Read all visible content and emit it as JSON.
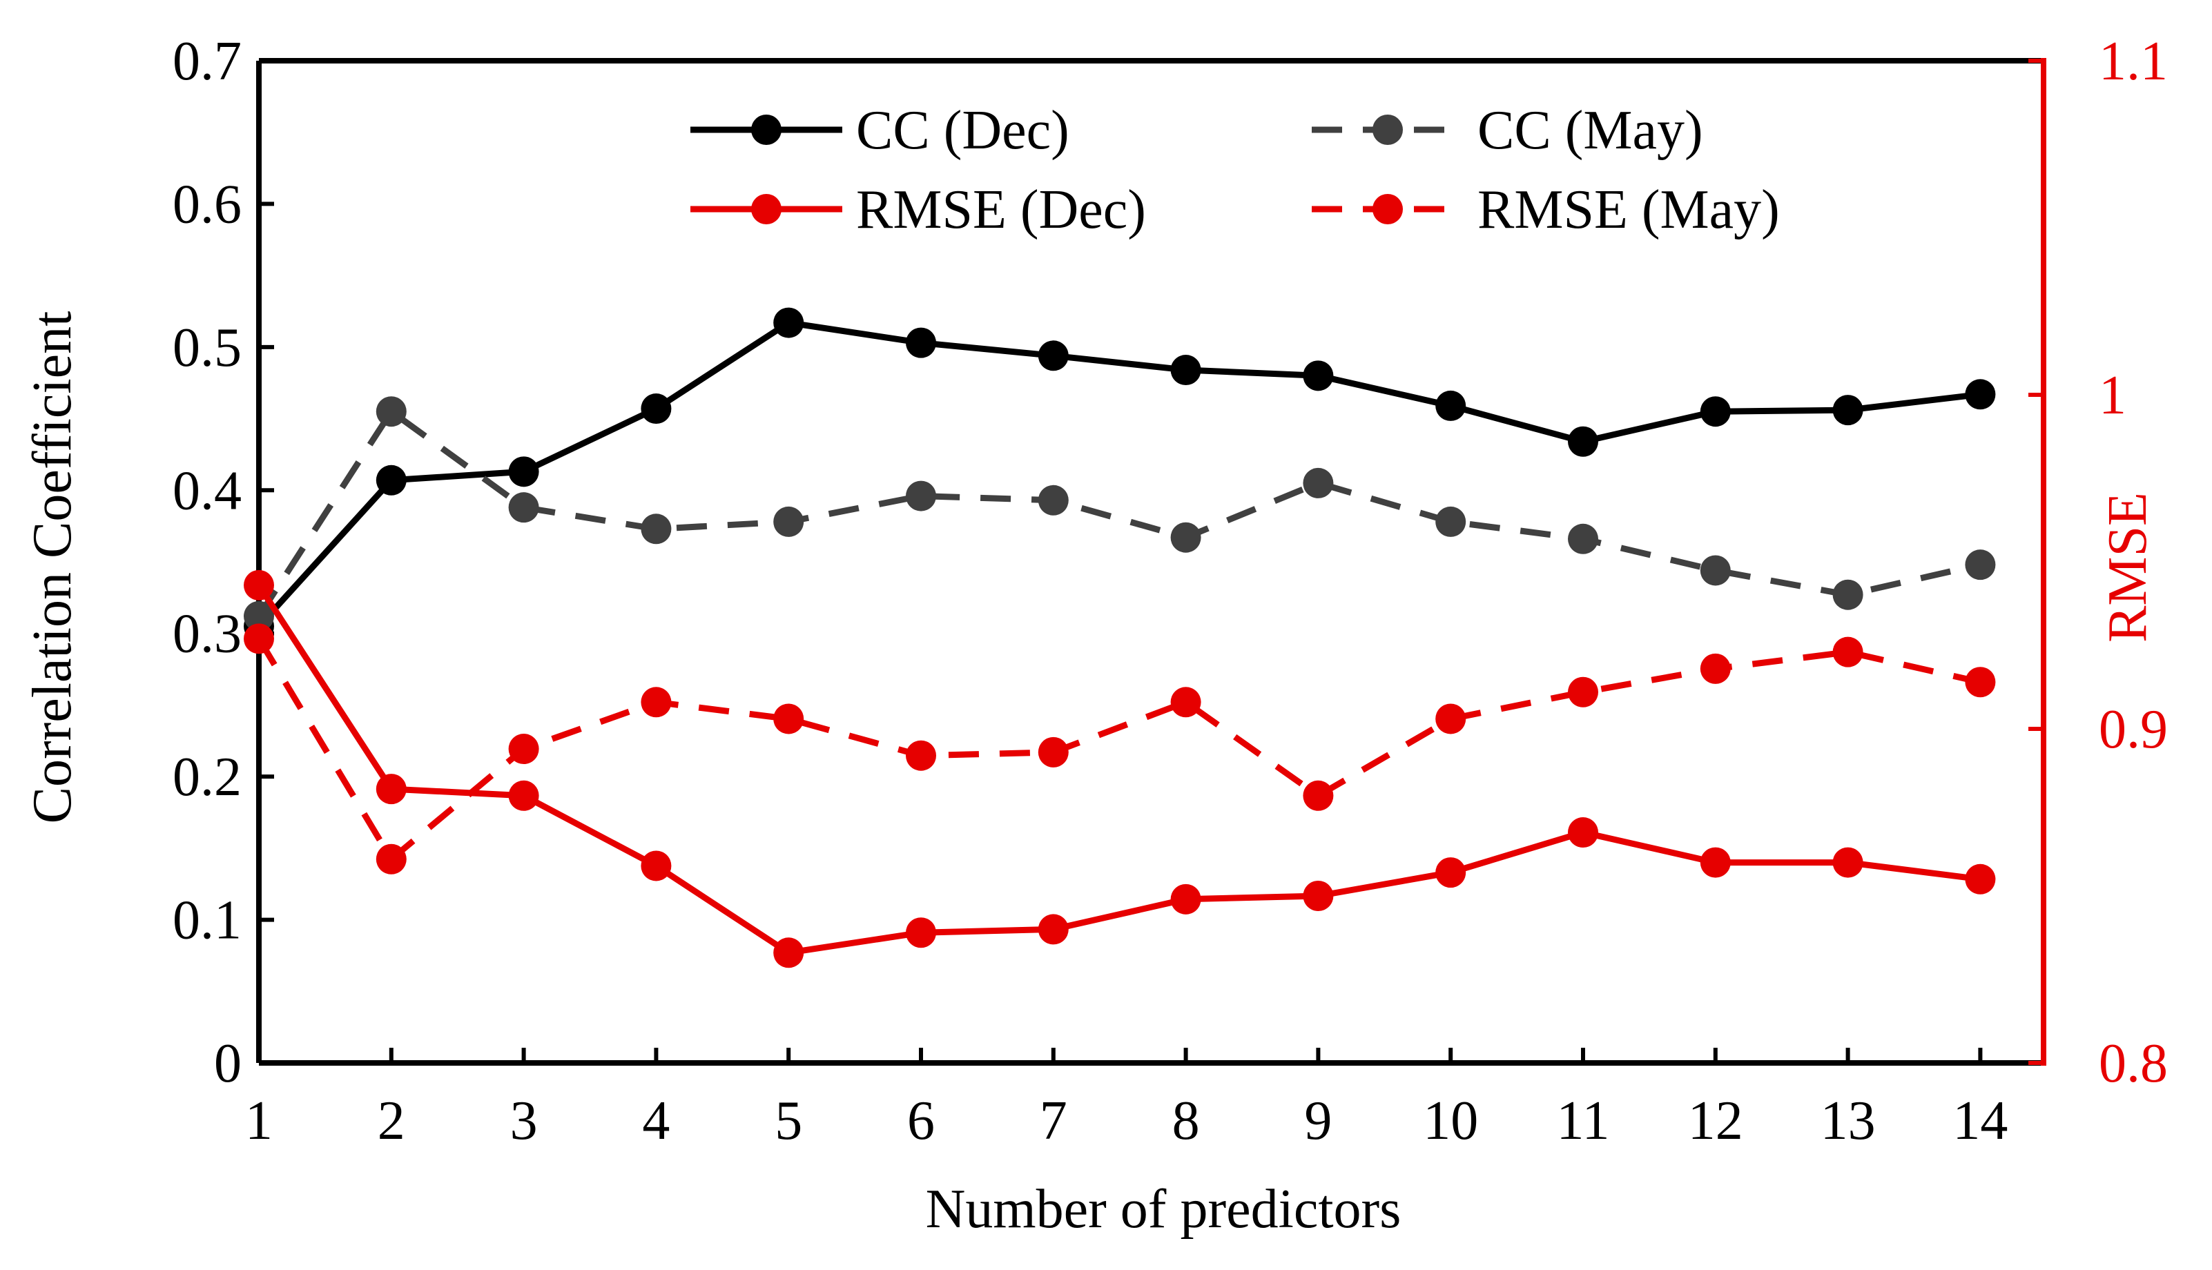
{
  "chart_data": {
    "type": "line",
    "title": "",
    "xlabel": "Number of predictors",
    "ylabel": "Correlation Coefficient",
    "y2label": "RMSE",
    "x": [
      1,
      2,
      3,
      4,
      5,
      6,
      7,
      8,
      9,
      10,
      11,
      12,
      13,
      14
    ],
    "xticks": [
      "1",
      "2",
      "3",
      "4",
      "5",
      "6",
      "7",
      "8",
      "9",
      "10",
      "11",
      "12",
      "13",
      "14"
    ],
    "ylim": [
      0,
      0.7
    ],
    "yticks": [
      "0",
      "0.1",
      "0.2",
      "0.3",
      "0.4",
      "0.5",
      "0.6",
      "0.7"
    ],
    "y2lim": [
      0.8,
      1.1
    ],
    "y2ticks": [
      "0.8",
      "0.9",
      "1",
      "1.1"
    ],
    "grid": false,
    "legend_position": "top",
    "colors": {
      "black": "#000000",
      "gray": "#404040",
      "red": "#e60000"
    },
    "series": [
      {
        "name": "CC (Dec)",
        "axis": "left",
        "color": "#000000",
        "dash": "solid",
        "values": [
          0.305,
          0.407,
          0.413,
          0.457,
          0.517,
          0.503,
          0.494,
          0.484,
          0.48,
          0.459,
          0.434,
          0.455,
          0.456,
          0.467
        ]
      },
      {
        "name": "CC (May)",
        "axis": "left",
        "color": "#404040",
        "dash": "dashed",
        "values": [
          0.312,
          0.455,
          0.388,
          0.373,
          0.378,
          0.396,
          0.393,
          0.367,
          0.405,
          0.378,
          0.366,
          0.344,
          0.327,
          0.348
        ]
      },
      {
        "name": "RMSE (Dec)",
        "axis": "right",
        "color": "#e60000",
        "dash": "solid",
        "values": [
          0.943,
          0.882,
          0.88,
          0.859,
          0.833,
          0.839,
          0.84,
          0.849,
          0.85,
          0.857,
          0.869,
          0.86,
          0.86,
          0.855
        ]
      },
      {
        "name": "RMSE (May)",
        "axis": "right",
        "color": "#e60000",
        "dash": "dashed",
        "values": [
          0.927,
          0.861,
          0.894,
          0.908,
          0.903,
          0.892,
          0.893,
          0.908,
          0.88,
          0.903,
          0.911,
          0.918,
          0.923,
          0.914
        ]
      }
    ]
  }
}
